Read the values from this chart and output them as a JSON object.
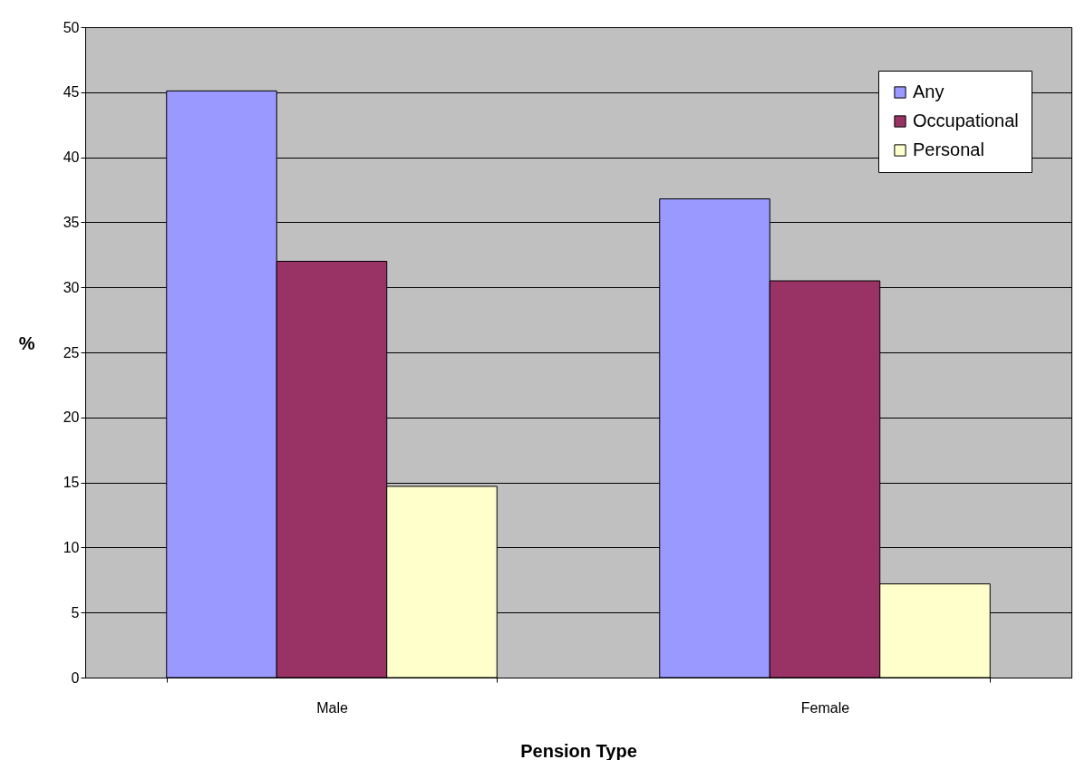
{
  "chart_data": {
    "type": "bar",
    "xlabel": "Pension Type",
    "ylabel": "%",
    "categories": [
      "Male",
      "Female"
    ],
    "series": [
      {
        "name": "Any",
        "color": "#9999ff",
        "values": [
          45.1,
          36.8
        ]
      },
      {
        "name": "Occupational",
        "color": "#993366",
        "values": [
          32.0,
          30.5
        ]
      },
      {
        "name": "Personal",
        "color": "#ffffcc",
        "values": [
          14.7,
          7.2
        ]
      }
    ],
    "ylim": [
      0,
      50
    ],
    "yticks": [
      0,
      5,
      10,
      15,
      20,
      25,
      30,
      35,
      40,
      45,
      50
    ],
    "grid": "y",
    "legend": "top right"
  }
}
